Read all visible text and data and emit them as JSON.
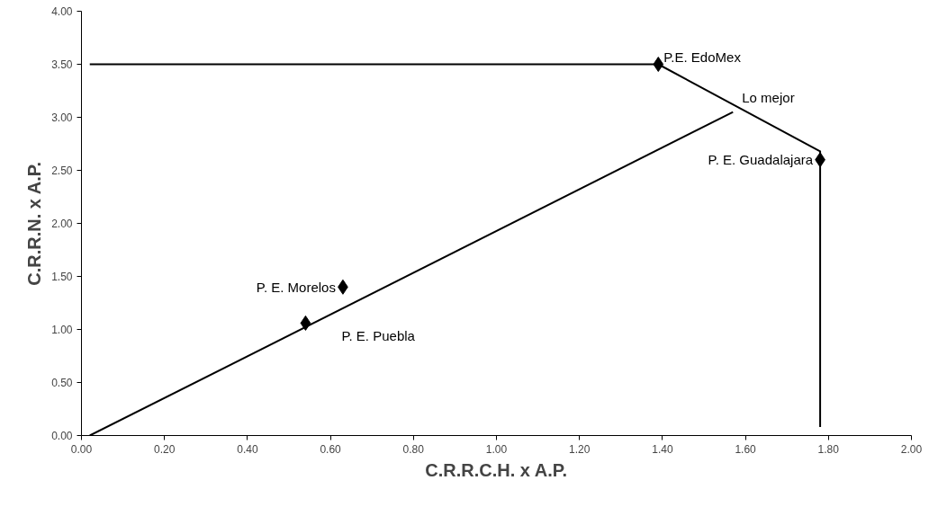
{
  "chart_data": {
    "type": "scatter",
    "xlabel": "C.R.R.C.H. x A.P.",
    "ylabel": "C.R.R.N. x A.P.",
    "series": [
      {
        "color": "#000000",
        "marker": "diamond",
        "x": [
          1.39,
          1.78,
          0.63,
          0.54
        ],
        "values": [
          3.5,
          2.6,
          1.4,
          1.06
        ]
      },
      {
        "type": "line",
        "color": "#000000",
        "marker": "none",
        "line_style": "solid",
        "x": [
          0.02,
          1.39,
          1.78,
          1.78
        ],
        "values": [
          3.5,
          3.5,
          2.68,
          0.08
        ]
      },
      {
        "type": "line",
        "color": "#000000",
        "marker": "none",
        "line_style": "solid",
        "x": [
          0.02,
          1.57
        ],
        "values": [
          0.0,
          3.05
        ]
      }
    ],
    "annotations": [
      {
        "text": "P.E. EdoMex",
        "x": 1.39,
        "y": 3.5
      },
      {
        "text": "P. E. Guadalajara",
        "x": 1.78,
        "y": 2.6
      },
      {
        "text": "P. E. Morelos",
        "x": 0.63,
        "y": 1.4
      },
      {
        "text": "P. E. Puebla",
        "x": 0.54,
        "y": 1.06
      },
      {
        "text": "Lo mejor",
        "x": 1.57,
        "y": 3.05
      }
    ],
    "xlim": [
      0,
      2
    ],
    "ylim": [
      0,
      4
    ],
    "xticks": [
      {
        "value": 0,
        "label": "0.00"
      },
      {
        "value": 0.2,
        "label": "0.20"
      },
      {
        "value": 0.4,
        "label": "0.40"
      },
      {
        "value": 0.6,
        "label": "0.60"
      },
      {
        "value": 0.8,
        "label": "0.80"
      },
      {
        "value": 1,
        "label": "1.00"
      },
      {
        "value": 1.2,
        "label": "1.20"
      },
      {
        "value": 1.4,
        "label": "1.40"
      },
      {
        "value": 1.6,
        "label": "1.60"
      },
      {
        "value": 1.8,
        "label": "1.80"
      },
      {
        "value": 2,
        "label": "2.00"
      }
    ],
    "yticks": [
      {
        "value": 0,
        "label": "0.00"
      },
      {
        "value": 0.5,
        "label": "0.50"
      },
      {
        "value": 1,
        "label": "1.00"
      },
      {
        "value": 1.5,
        "label": "1.50"
      },
      {
        "value": 2,
        "label": "2.00"
      },
      {
        "value": 2.5,
        "label": "2.50"
      },
      {
        "value": 3,
        "label": "3.00"
      },
      {
        "value": 3.5,
        "label": "3.50"
      },
      {
        "value": 4,
        "label": "4.00"
      }
    ],
    "grid": false
  }
}
